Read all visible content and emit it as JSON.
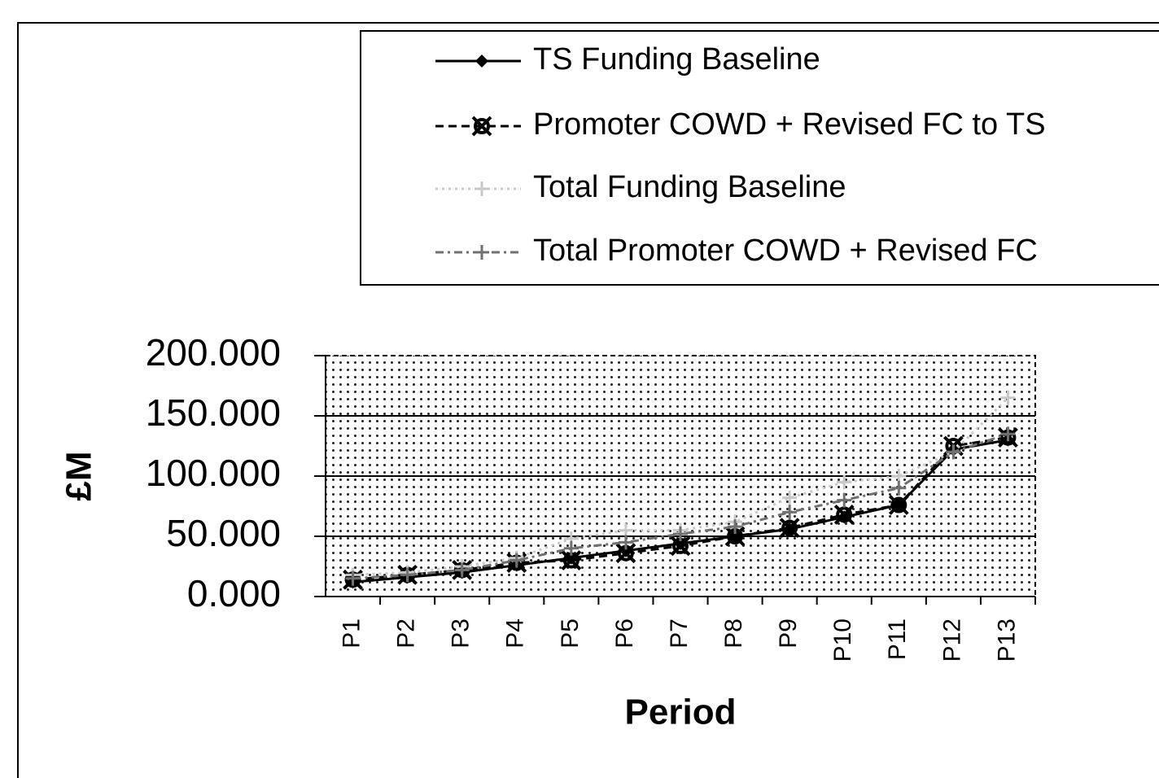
{
  "chart_data": {
    "type": "line",
    "x_label": "Period",
    "y_label": "£M",
    "categories": [
      "P1",
      "P2",
      "P3",
      "P4",
      "P5",
      "P6",
      "P7",
      "P8",
      "P9",
      "P10",
      "P11",
      "P12",
      "P13"
    ],
    "series": [
      {
        "name": "TS Funding Baseline",
        "color": "#000000",
        "style": "solid",
        "marker": "diamond",
        "values": [
          12,
          16,
          20,
          26,
          32,
          38,
          44,
          50,
          56,
          66,
          76,
          122,
          130
        ]
      },
      {
        "name": "Promoter COWD + Revised FC to TS",
        "color": "#000000",
        "style": "dashed",
        "marker": "x",
        "values": [
          14,
          18,
          22,
          28,
          30,
          36,
          42,
          50,
          57,
          68,
          76,
          125,
          132
        ]
      },
      {
        "name": "Total Funding Baseline",
        "color": "#c8c8c8",
        "style": "dotted",
        "marker": "plus",
        "values": [
          18,
          20,
          25,
          32,
          48,
          55,
          55,
          62,
          82,
          95,
          100,
          120,
          165
        ]
      },
      {
        "name": "Total Promoter COWD + Revised FC",
        "color": "#707070",
        "style": "dashdot",
        "marker": "plus",
        "values": [
          15,
          18,
          22,
          30,
          40,
          45,
          52,
          58,
          70,
          80,
          90,
          120,
          135
        ]
      }
    ],
    "ylim": [
      0,
      200
    ],
    "yticks": [
      {
        "value": 0,
        "label": "0.000"
      },
      {
        "value": 50,
        "label": "50.000"
      },
      {
        "value": 100,
        "label": "100.000"
      },
      {
        "value": 150,
        "label": "150.000"
      },
      {
        "value": 200,
        "label": "200.000"
      }
    ],
    "grid": true,
    "legend": "top-right"
  }
}
